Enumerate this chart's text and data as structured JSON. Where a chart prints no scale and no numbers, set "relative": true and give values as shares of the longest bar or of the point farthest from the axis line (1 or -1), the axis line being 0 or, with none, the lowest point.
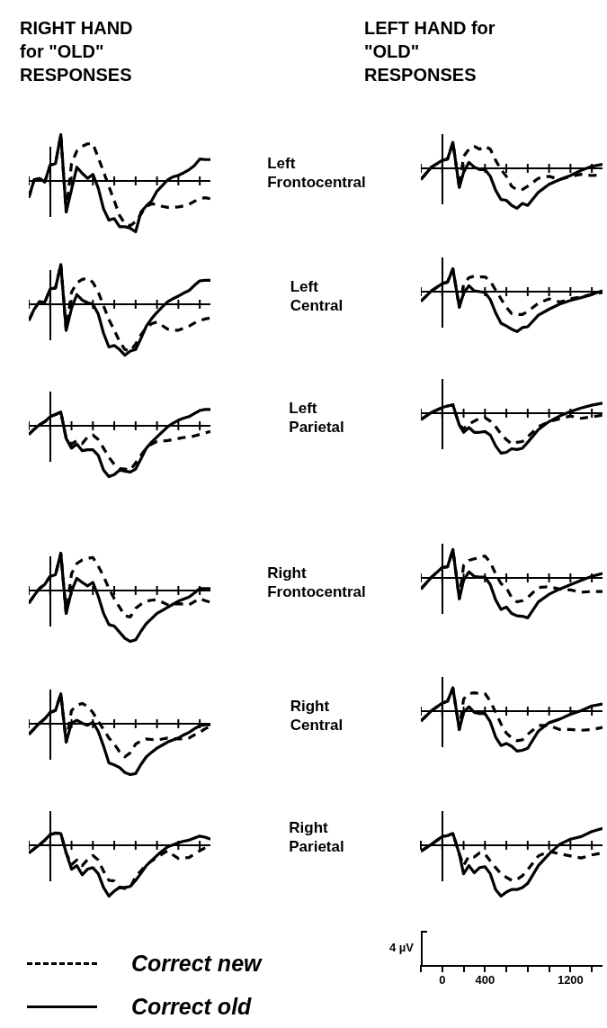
{
  "chart_data": [
    {
      "type": "line",
      "annotations": [
        "Left Frontocentral"
      ],
      "subtitle": "RIGHT HAND for \"OLD\" RESPONSES",
      "relative": true,
      "tick_labels": false,
      "categories": [
        null,
        null,
        null,
        null,
        null,
        null,
        null,
        null,
        null,
        null,
        null,
        null,
        null,
        null,
        null,
        null,
        null,
        null,
        null,
        null,
        null,
        null,
        null,
        null,
        null,
        null,
        null,
        null,
        null,
        null,
        null,
        null,
        null,
        null,
        null
      ],
      "series": [
        {
          "color": "#000000",
          "line_style": "dashed",
          "values": [
            -0.33,
            0.02,
            0.05,
            -0.02,
            0.31,
            0.34,
            0.91,
            -0.61,
            0.34,
            0.59,
            0.68,
            0.73,
            0.73,
            0.46,
            0.18,
            -0.11,
            -0.39,
            -0.68,
            -0.84,
            -0.88,
            -0.8,
            -0.65,
            -0.5,
            -0.45,
            -0.46,
            -0.5,
            -0.52,
            -0.52,
            -0.51,
            -0.49,
            -0.46,
            -0.4,
            -0.35,
            -0.33,
            -0.35
          ]
        },
        {
          "color": "#000000",
          "line_style": "solid",
          "values": [
            -0.33,
            0.02,
            0.05,
            -0.02,
            0.31,
            0.34,
            0.91,
            -0.61,
            -0.17,
            0.27,
            0.15,
            0.05,
            0.13,
            -0.14,
            -0.55,
            -0.77,
            -0.74,
            -0.9,
            -0.9,
            -0.93,
            -1.0,
            -0.61,
            -0.49,
            -0.39,
            -0.2,
            -0.09,
            0.02,
            0.08,
            0.11,
            0.16,
            0.22,
            0.3,
            0.43,
            0.42,
            0.42
          ]
        }
      ]
    },
    {
      "type": "line",
      "subtitle": "LEFT HAND for \"OLD\" RESPONSES",
      "relative": true,
      "tick_labels": false,
      "x": [
        -200,
        -100,
        0,
        50,
        100,
        160,
        200,
        250,
        300,
        350,
        400,
        450,
        500,
        550,
        600,
        650,
        700,
        750,
        800,
        900,
        1000,
        1100,
        1200,
        1300,
        1400,
        1500
      ],
      "xlim": [
        -200,
        1500
      ],
      "xticks": [
        {
          "value": -200,
          "label": null
        },
        {
          "value": 0,
          "label": null
        },
        {
          "value": 200,
          "label": null
        },
        {
          "value": 400,
          "label": null
        },
        {
          "value": 600,
          "label": null
        },
        {
          "value": 800,
          "label": null
        },
        {
          "value": 1000,
          "label": null
        },
        {
          "value": 1200,
          "label": null
        },
        {
          "value": 1400,
          "label": null
        }
      ],
      "series": [
        {
          "color": "#000000",
          "line_style": "dashed",
          "values": [
            -0.28,
            0.03,
            0.2,
            0.23,
            0.65,
            -0.48,
            0.3,
            0.48,
            0.55,
            0.48,
            0.55,
            0.48,
            0.2,
            -0.03,
            -0.2,
            -0.45,
            -0.54,
            -0.53,
            -0.45,
            -0.25,
            -0.2,
            -0.28,
            -0.2,
            -0.15,
            -0.18,
            -0.16
          ]
        },
        {
          "color": "#000000",
          "line_style": "solid",
          "values": [
            -0.28,
            0.03,
            0.2,
            0.23,
            0.65,
            -0.48,
            -0.1,
            0.15,
            0.03,
            -0.03,
            -0.03,
            -0.2,
            -0.55,
            -0.78,
            -0.8,
            -0.93,
            -1.0,
            -0.88,
            -0.93,
            -0.6,
            -0.4,
            -0.28,
            -0.18,
            -0.05,
            0.05,
            0.1
          ]
        }
      ]
    },
    {
      "type": "line",
      "annotations": [
        "Left Central"
      ],
      "relative": true,
      "tick_labels": false,
      "categories": [
        null,
        null,
        null,
        null,
        null,
        null,
        null,
        null,
        null,
        null,
        null,
        null,
        null,
        null,
        null,
        null,
        null,
        null,
        null,
        null,
        null,
        null,
        null,
        null,
        null,
        null,
        null,
        null,
        null,
        null,
        null,
        null,
        null,
        null,
        null
      ],
      "series": [
        {
          "color": "#000000",
          "line_style": "dashed",
          "values": [
            -0.32,
            -0.1,
            0.05,
            0.04,
            0.3,
            0.32,
            0.78,
            -0.51,
            0.24,
            0.42,
            0.49,
            0.51,
            0.43,
            0.24,
            -0.03,
            -0.3,
            -0.51,
            -0.73,
            -0.89,
            -0.92,
            -0.78,
            -0.6,
            -0.46,
            -0.38,
            -0.35,
            -0.42,
            -0.49,
            -0.51,
            -0.51,
            -0.47,
            -0.43,
            -0.37,
            -0.32,
            -0.29,
            -0.27
          ]
        },
        {
          "color": "#000000",
          "line_style": "solid",
          "values": [
            -0.32,
            -0.1,
            0.05,
            0.04,
            0.3,
            0.32,
            0.78,
            -0.51,
            -0.08,
            0.19,
            0.08,
            0.03,
            0,
            -0.19,
            -0.57,
            -0.84,
            -0.81,
            -0.89,
            -1.0,
            -0.92,
            -0.89,
            -0.67,
            -0.43,
            -0.28,
            -0.16,
            -0.05,
            0.05,
            0.11,
            0.16,
            0.22,
            0.27,
            0.37,
            0.46,
            0.47,
            0.47
          ]
        }
      ]
    },
    {
      "type": "line",
      "relative": true,
      "tick_labels": false,
      "x": [
        -200,
        -100,
        0,
        50,
        100,
        160,
        200,
        250,
        300,
        350,
        400,
        450,
        500,
        550,
        600,
        650,
        700,
        750,
        800,
        900,
        1000,
        1100,
        1200,
        1300,
        1400,
        1500
      ],
      "xlim": [
        -200,
        1500
      ],
      "xticks": [
        {
          "value": -200,
          "label": null
        },
        {
          "value": 0,
          "label": null
        },
        {
          "value": 200,
          "label": null
        },
        {
          "value": 400,
          "label": null
        },
        {
          "value": 600,
          "label": null
        },
        {
          "value": 800,
          "label": null
        },
        {
          "value": 1000,
          "label": null
        },
        {
          "value": 1200,
          "label": null
        },
        {
          "value": 1400,
          "label": null
        }
      ],
      "series": [
        {
          "color": "#000000",
          "line_style": "dashed",
          "values": [
            -0.24,
            0.02,
            0.2,
            0.24,
            0.57,
            -0.39,
            0.18,
            0.35,
            0.39,
            0.37,
            0.37,
            0.26,
            0.04,
            -0.18,
            -0.39,
            -0.55,
            -0.57,
            -0.57,
            -0.5,
            -0.29,
            -0.18,
            -0.26,
            -0.18,
            -0.13,
            -0.07,
            -0.02
          ]
        },
        {
          "color": "#000000",
          "line_style": "solid",
          "values": [
            -0.24,
            0.02,
            0.2,
            0.24,
            0.57,
            -0.39,
            -0.04,
            0.15,
            0.02,
            0,
            -0.02,
            -0.2,
            -0.53,
            -0.79,
            -0.86,
            -0.94,
            -1.0,
            -0.9,
            -0.88,
            -0.59,
            -0.44,
            -0.31,
            -0.22,
            -0.15,
            -0.07,
            0.02
          ]
        }
      ]
    },
    {
      "type": "line",
      "annotations": [
        "Left Parietal"
      ],
      "relative": true,
      "tick_labels": false,
      "categories": [
        null,
        null,
        null,
        null,
        null,
        null,
        null,
        null,
        null,
        null,
        null,
        null,
        null,
        null,
        null,
        null,
        null,
        null,
        null,
        null,
        null,
        null,
        null,
        null,
        null,
        null,
        null,
        null,
        null,
        null,
        null,
        null,
        null,
        null,
        null
      ],
      "series": [
        {
          "color": "#000000",
          "line_style": "dashed",
          "values": [
            -0.17,
            -0.07,
            0.02,
            0.08,
            0.18,
            0.22,
            0.27,
            -0.25,
            -0.36,
            -0.29,
            -0.35,
            -0.22,
            -0.18,
            -0.27,
            -0.44,
            -0.62,
            -0.76,
            -0.84,
            -0.85,
            -0.87,
            -0.73,
            -0.58,
            -0.44,
            -0.36,
            -0.31,
            -0.3,
            -0.29,
            -0.27,
            -0.25,
            -0.23,
            -0.22,
            -0.2,
            -0.17,
            -0.14,
            -0.11
          ]
        },
        {
          "color": "#000000",
          "line_style": "solid",
          "values": [
            -0.17,
            -0.07,
            0.02,
            0.08,
            0.18,
            0.22,
            0.27,
            -0.25,
            -0.44,
            -0.36,
            -0.49,
            -0.47,
            -0.47,
            -0.58,
            -0.87,
            -1.0,
            -0.96,
            -0.87,
            -0.89,
            -0.91,
            -0.85,
            -0.65,
            -0.44,
            -0.32,
            -0.22,
            -0.12,
            -0.02,
            0.05,
            0.11,
            0.15,
            0.18,
            0.24,
            0.3,
            0.32,
            0.32
          ]
        }
      ]
    },
    {
      "type": "line",
      "relative": true,
      "tick_labels": false,
      "x": [
        -200,
        -100,
        0,
        50,
        100,
        160,
        200,
        250,
        300,
        350,
        400,
        450,
        500,
        550,
        600,
        650,
        700,
        750,
        800,
        900,
        1000,
        1100,
        1200,
        1300,
        1400,
        1500
      ],
      "xlim": [
        -200,
        1500
      ],
      "xticks": [
        {
          "value": -200,
          "label": null
        },
        {
          "value": 0,
          "label": null
        },
        {
          "value": 200,
          "label": null
        },
        {
          "value": 400,
          "label": null
        },
        {
          "value": 600,
          "label": null
        },
        {
          "value": 800,
          "label": null
        },
        {
          "value": 1000,
          "label": null
        },
        {
          "value": 1200,
          "label": null
        },
        {
          "value": 1400,
          "label": null
        }
      ],
      "series": [
        {
          "color": "#000000",
          "line_style": "dashed",
          "values": [
            -0.16,
            0.02,
            0.14,
            0.18,
            0.21,
            -0.3,
            -0.39,
            -0.27,
            -0.2,
            -0.13,
            -0.11,
            -0.2,
            -0.34,
            -0.52,
            -0.66,
            -0.77,
            -0.73,
            -0.71,
            -0.59,
            -0.34,
            -0.21,
            -0.14,
            -0.07,
            -0.13,
            -0.09,
            -0.05
          ]
        },
        {
          "color": "#000000",
          "line_style": "solid",
          "values": [
            -0.16,
            0.02,
            0.14,
            0.18,
            0.21,
            -0.3,
            -0.48,
            -0.36,
            -0.48,
            -0.48,
            -0.46,
            -0.55,
            -0.82,
            -1.0,
            -0.98,
            -0.89,
            -0.91,
            -0.88,
            -0.73,
            -0.41,
            -0.21,
            -0.07,
            0.04,
            0.13,
            0.2,
            0.25
          ]
        }
      ]
    },
    {
      "type": "line",
      "annotations": [
        "Right Frontocentral"
      ],
      "relative": true,
      "tick_labels": false,
      "categories": [
        null,
        null,
        null,
        null,
        null,
        null,
        null,
        null,
        null,
        null,
        null,
        null,
        null,
        null,
        null,
        null,
        null,
        null,
        null,
        null,
        null,
        null,
        null,
        null,
        null,
        null,
        null,
        null,
        null,
        null,
        null,
        null,
        null,
        null,
        null
      ],
      "series": [
        {
          "color": "#000000",
          "line_style": "dashed",
          "values": [
            -0.25,
            -0.1,
            0.04,
            0.12,
            0.28,
            0.31,
            0.73,
            -0.45,
            0.33,
            0.53,
            0.6,
            0.63,
            0.65,
            0.48,
            0.28,
            0.04,
            -0.16,
            -0.33,
            -0.5,
            -0.52,
            -0.35,
            -0.27,
            -0.21,
            -0.19,
            -0.18,
            -0.23,
            -0.28,
            -0.27,
            -0.26,
            -0.27,
            -0.28,
            -0.22,
            -0.16,
            -0.2,
            -0.23
          ]
        },
        {
          "color": "#000000",
          "line_style": "solid",
          "values": [
            -0.25,
            -0.1,
            0.04,
            0.12,
            0.28,
            0.31,
            0.73,
            -0.45,
            -0.01,
            0.24,
            0.16,
            0.09,
            0.16,
            -0.11,
            -0.45,
            -0.67,
            -0.7,
            -0.82,
            -0.94,
            -1.0,
            -0.97,
            -0.8,
            -0.65,
            -0.55,
            -0.45,
            -0.39,
            -0.33,
            -0.27,
            -0.21,
            -0.17,
            -0.13,
            -0.05,
            0.04,
            0.04,
            0.04
          ]
        }
      ]
    },
    {
      "type": "line",
      "relative": true,
      "tick_labels": false,
      "x": [
        -200,
        -100,
        0,
        50,
        100,
        160,
        200,
        250,
        300,
        350,
        400,
        450,
        500,
        550,
        600,
        650,
        700,
        750,
        800,
        900,
        1000,
        1100,
        1200,
        1300,
        1400,
        1500
      ],
      "xlim": [
        -200,
        1500
      ],
      "xticks": [
        {
          "value": -200,
          "label": null
        },
        {
          "value": 0,
          "label": null
        },
        {
          "value": 200,
          "label": null
        },
        {
          "value": 400,
          "label": null
        },
        {
          "value": 600,
          "label": null
        },
        {
          "value": 800,
          "label": null
        },
        {
          "value": 1000,
          "label": null
        },
        {
          "value": 1200,
          "label": null
        },
        {
          "value": 1400,
          "label": null
        }
      ],
      "series": [
        {
          "color": "#000000",
          "line_style": "dashed",
          "values": [
            -0.28,
            0.02,
            0.26,
            0.28,
            0.71,
            -0.52,
            0.31,
            0.44,
            0.48,
            0.5,
            0.55,
            0.39,
            0.1,
            -0.14,
            -0.25,
            -0.49,
            -0.6,
            -0.57,
            -0.49,
            -0.24,
            -0.22,
            -0.28,
            -0.3,
            -0.36,
            -0.34,
            -0.34
          ]
        },
        {
          "color": "#000000",
          "line_style": "solid",
          "values": [
            -0.28,
            0.02,
            0.26,
            0.28,
            0.71,
            -0.52,
            -0.06,
            0.15,
            0.04,
            0.02,
            0.02,
            -0.17,
            -0.55,
            -0.79,
            -0.73,
            -0.89,
            -0.95,
            -0.96,
            -1.0,
            -0.6,
            -0.41,
            -0.28,
            -0.17,
            -0.06,
            0.04,
            0.11
          ]
        }
      ]
    },
    {
      "type": "line",
      "annotations": [
        "Right Central"
      ],
      "relative": true,
      "tick_labels": false,
      "categories": [
        null,
        null,
        null,
        null,
        null,
        null,
        null,
        null,
        null,
        null,
        null,
        null,
        null,
        null,
        null,
        null,
        null,
        null,
        null,
        null,
        null,
        null,
        null,
        null,
        null,
        null,
        null,
        null,
        null,
        null,
        null,
        null,
        null,
        null,
        null
      ],
      "series": [
        {
          "color": "#000000",
          "line_style": "dashed",
          "values": [
            -0.21,
            -0.1,
            0.01,
            0.1,
            0.22,
            0.26,
            0.59,
            -0.36,
            0.26,
            0.36,
            0.4,
            0.34,
            0.22,
            0.05,
            -0.11,
            -0.28,
            -0.4,
            -0.55,
            -0.65,
            -0.57,
            -0.4,
            -0.34,
            -0.3,
            -0.31,
            -0.32,
            -0.3,
            -0.28,
            -0.29,
            -0.3,
            -0.29,
            -0.28,
            -0.22,
            -0.17,
            -0.1,
            -0.05
          ]
        },
        {
          "color": "#000000",
          "line_style": "solid",
          "values": [
            -0.21,
            -0.1,
            0.01,
            0.1,
            0.22,
            0.26,
            0.59,
            -0.36,
            0.01,
            0.07,
            0.01,
            -0.03,
            0.03,
            -0.15,
            -0.44,
            -0.77,
            -0.81,
            -0.86,
            -0.96,
            -1.0,
            -0.98,
            -0.8,
            -0.65,
            -0.56,
            -0.48,
            -0.42,
            -0.36,
            -0.32,
            -0.28,
            -0.22,
            -0.17,
            -0.1,
            -0.04,
            -0.02,
            -0.02
          ]
        }
      ]
    },
    {
      "type": "line",
      "relative": true,
      "tick_labels": false,
      "x": [
        -200,
        -100,
        0,
        50,
        100,
        160,
        200,
        250,
        300,
        350,
        400,
        450,
        500,
        550,
        600,
        650,
        700,
        750,
        800,
        900,
        1000,
        1100,
        1200,
        1300,
        1400,
        1500
      ],
      "xlim": [
        -200,
        1500
      ],
      "xticks": [
        {
          "value": -200,
          "label": null
        },
        {
          "value": 0,
          "label": null
        },
        {
          "value": 200,
          "label": null
        },
        {
          "value": 400,
          "label": null
        },
        {
          "value": 600,
          "label": null
        },
        {
          "value": 800,
          "label": null
        },
        {
          "value": 1000,
          "label": null
        },
        {
          "value": 1200,
          "label": null
        },
        {
          "value": 1400,
          "label": null
        }
      ],
      "series": [
        {
          "color": "#000000",
          "line_style": "dashed",
          "values": [
            -0.25,
            0.01,
            0.2,
            0.25,
            0.58,
            -0.46,
            0.3,
            0.44,
            0.46,
            0.44,
            0.44,
            0.25,
            -0.03,
            -0.32,
            -0.55,
            -0.67,
            -0.74,
            -0.72,
            -0.58,
            -0.36,
            -0.36,
            -0.46,
            -0.46,
            -0.48,
            -0.46,
            -0.41
          ]
        },
        {
          "color": "#000000",
          "line_style": "solid",
          "values": [
            -0.25,
            0.01,
            0.2,
            0.25,
            0.58,
            -0.46,
            -0.03,
            0.11,
            -0.03,
            -0.06,
            -0.06,
            -0.27,
            -0.65,
            -0.86,
            -0.81,
            -0.88,
            -1.0,
            -0.98,
            -0.93,
            -0.5,
            -0.29,
            -0.2,
            -0.08,
            0.01,
            0.13,
            0.18
          ]
        }
      ]
    },
    {
      "type": "line",
      "annotations": [
        "Right Parietal"
      ],
      "relative": true,
      "tick_labels": false,
      "legend": "bottom",
      "categories": [
        null,
        null,
        null,
        null,
        null,
        null,
        null,
        null,
        null,
        null,
        null,
        null,
        null,
        null,
        null,
        null,
        null,
        null,
        null,
        null,
        null,
        null,
        null,
        null,
        null,
        null,
        null,
        null,
        null,
        null,
        null,
        null,
        null,
        null,
        null
      ],
      "series": [
        {
          "name": "Correct new",
          "color": "#000000",
          "line_style": "dashed",
          "values": [
            -0.15,
            -0.07,
            0.01,
            0.1,
            0.21,
            0.24,
            0.23,
            -0.15,
            -0.38,
            -0.29,
            -0.4,
            -0.28,
            -0.2,
            -0.29,
            -0.51,
            -0.69,
            -0.7,
            -0.83,
            -0.85,
            -0.83,
            -0.61,
            -0.5,
            -0.38,
            -0.31,
            -0.24,
            -0.17,
            -0.11,
            -0.19,
            -0.26,
            -0.25,
            -0.24,
            -0.17,
            -0.11,
            -0.05,
            -0.01
          ]
        },
        {
          "name": "Correct old",
          "color": "#000000",
          "line_style": "solid",
          "values": [
            -0.15,
            -0.07,
            0.01,
            0.1,
            0.21,
            0.24,
            0.23,
            -0.15,
            -0.47,
            -0.4,
            -0.58,
            -0.47,
            -0.44,
            -0.56,
            -0.83,
            -1.0,
            -0.9,
            -0.83,
            -0.83,
            -0.81,
            -0.69,
            -0.55,
            -0.4,
            -0.3,
            -0.2,
            -0.11,
            -0.03,
            0.01,
            0.05,
            0.08,
            0.1,
            0.14,
            0.18,
            0.16,
            0.12
          ]
        }
      ]
    },
    {
      "type": "line",
      "ylabel": "4 µV",
      "relative": true,
      "tick_labels": "x",
      "x": [
        -200,
        -100,
        0,
        50,
        100,
        160,
        200,
        250,
        300,
        350,
        400,
        450,
        500,
        550,
        600,
        650,
        700,
        750,
        800,
        900,
        1000,
        1100,
        1200,
        1300,
        1400,
        1500
      ],
      "xlim": [
        -200,
        1500
      ],
      "xticks": [
        {
          "value": -200,
          "label": null
        },
        {
          "value": 0,
          "label": "0"
        },
        {
          "value": 200,
          "label": null
        },
        {
          "value": 400,
          "label": "400"
        },
        {
          "value": 600,
          "label": null
        },
        {
          "value": 800,
          "label": null
        },
        {
          "value": 1000,
          "label": null
        },
        {
          "value": 1200,
          "label": "1200"
        },
        {
          "value": 1400,
          "label": null
        }
      ],
      "series": [
        {
          "color": "#000000",
          "line_style": "dashed",
          "values": [
            -0.12,
            0.02,
            0.17,
            0.19,
            0.23,
            -0.17,
            -0.4,
            -0.21,
            -0.23,
            -0.15,
            -0.17,
            -0.31,
            -0.44,
            -0.56,
            -0.63,
            -0.69,
            -0.67,
            -0.6,
            -0.48,
            -0.21,
            -0.12,
            -0.17,
            -0.21,
            -0.25,
            -0.19,
            -0.15
          ]
        },
        {
          "color": "#000000",
          "line_style": "solid",
          "values": [
            -0.12,
            0.02,
            0.17,
            0.19,
            0.23,
            -0.17,
            -0.56,
            -0.4,
            -0.54,
            -0.44,
            -0.42,
            -0.56,
            -0.87,
            -1.0,
            -0.92,
            -0.87,
            -0.87,
            -0.83,
            -0.75,
            -0.4,
            -0.17,
            0.02,
            0.12,
            0.17,
            0.27,
            0.33
          ]
        }
      ]
    }
  ]
}
